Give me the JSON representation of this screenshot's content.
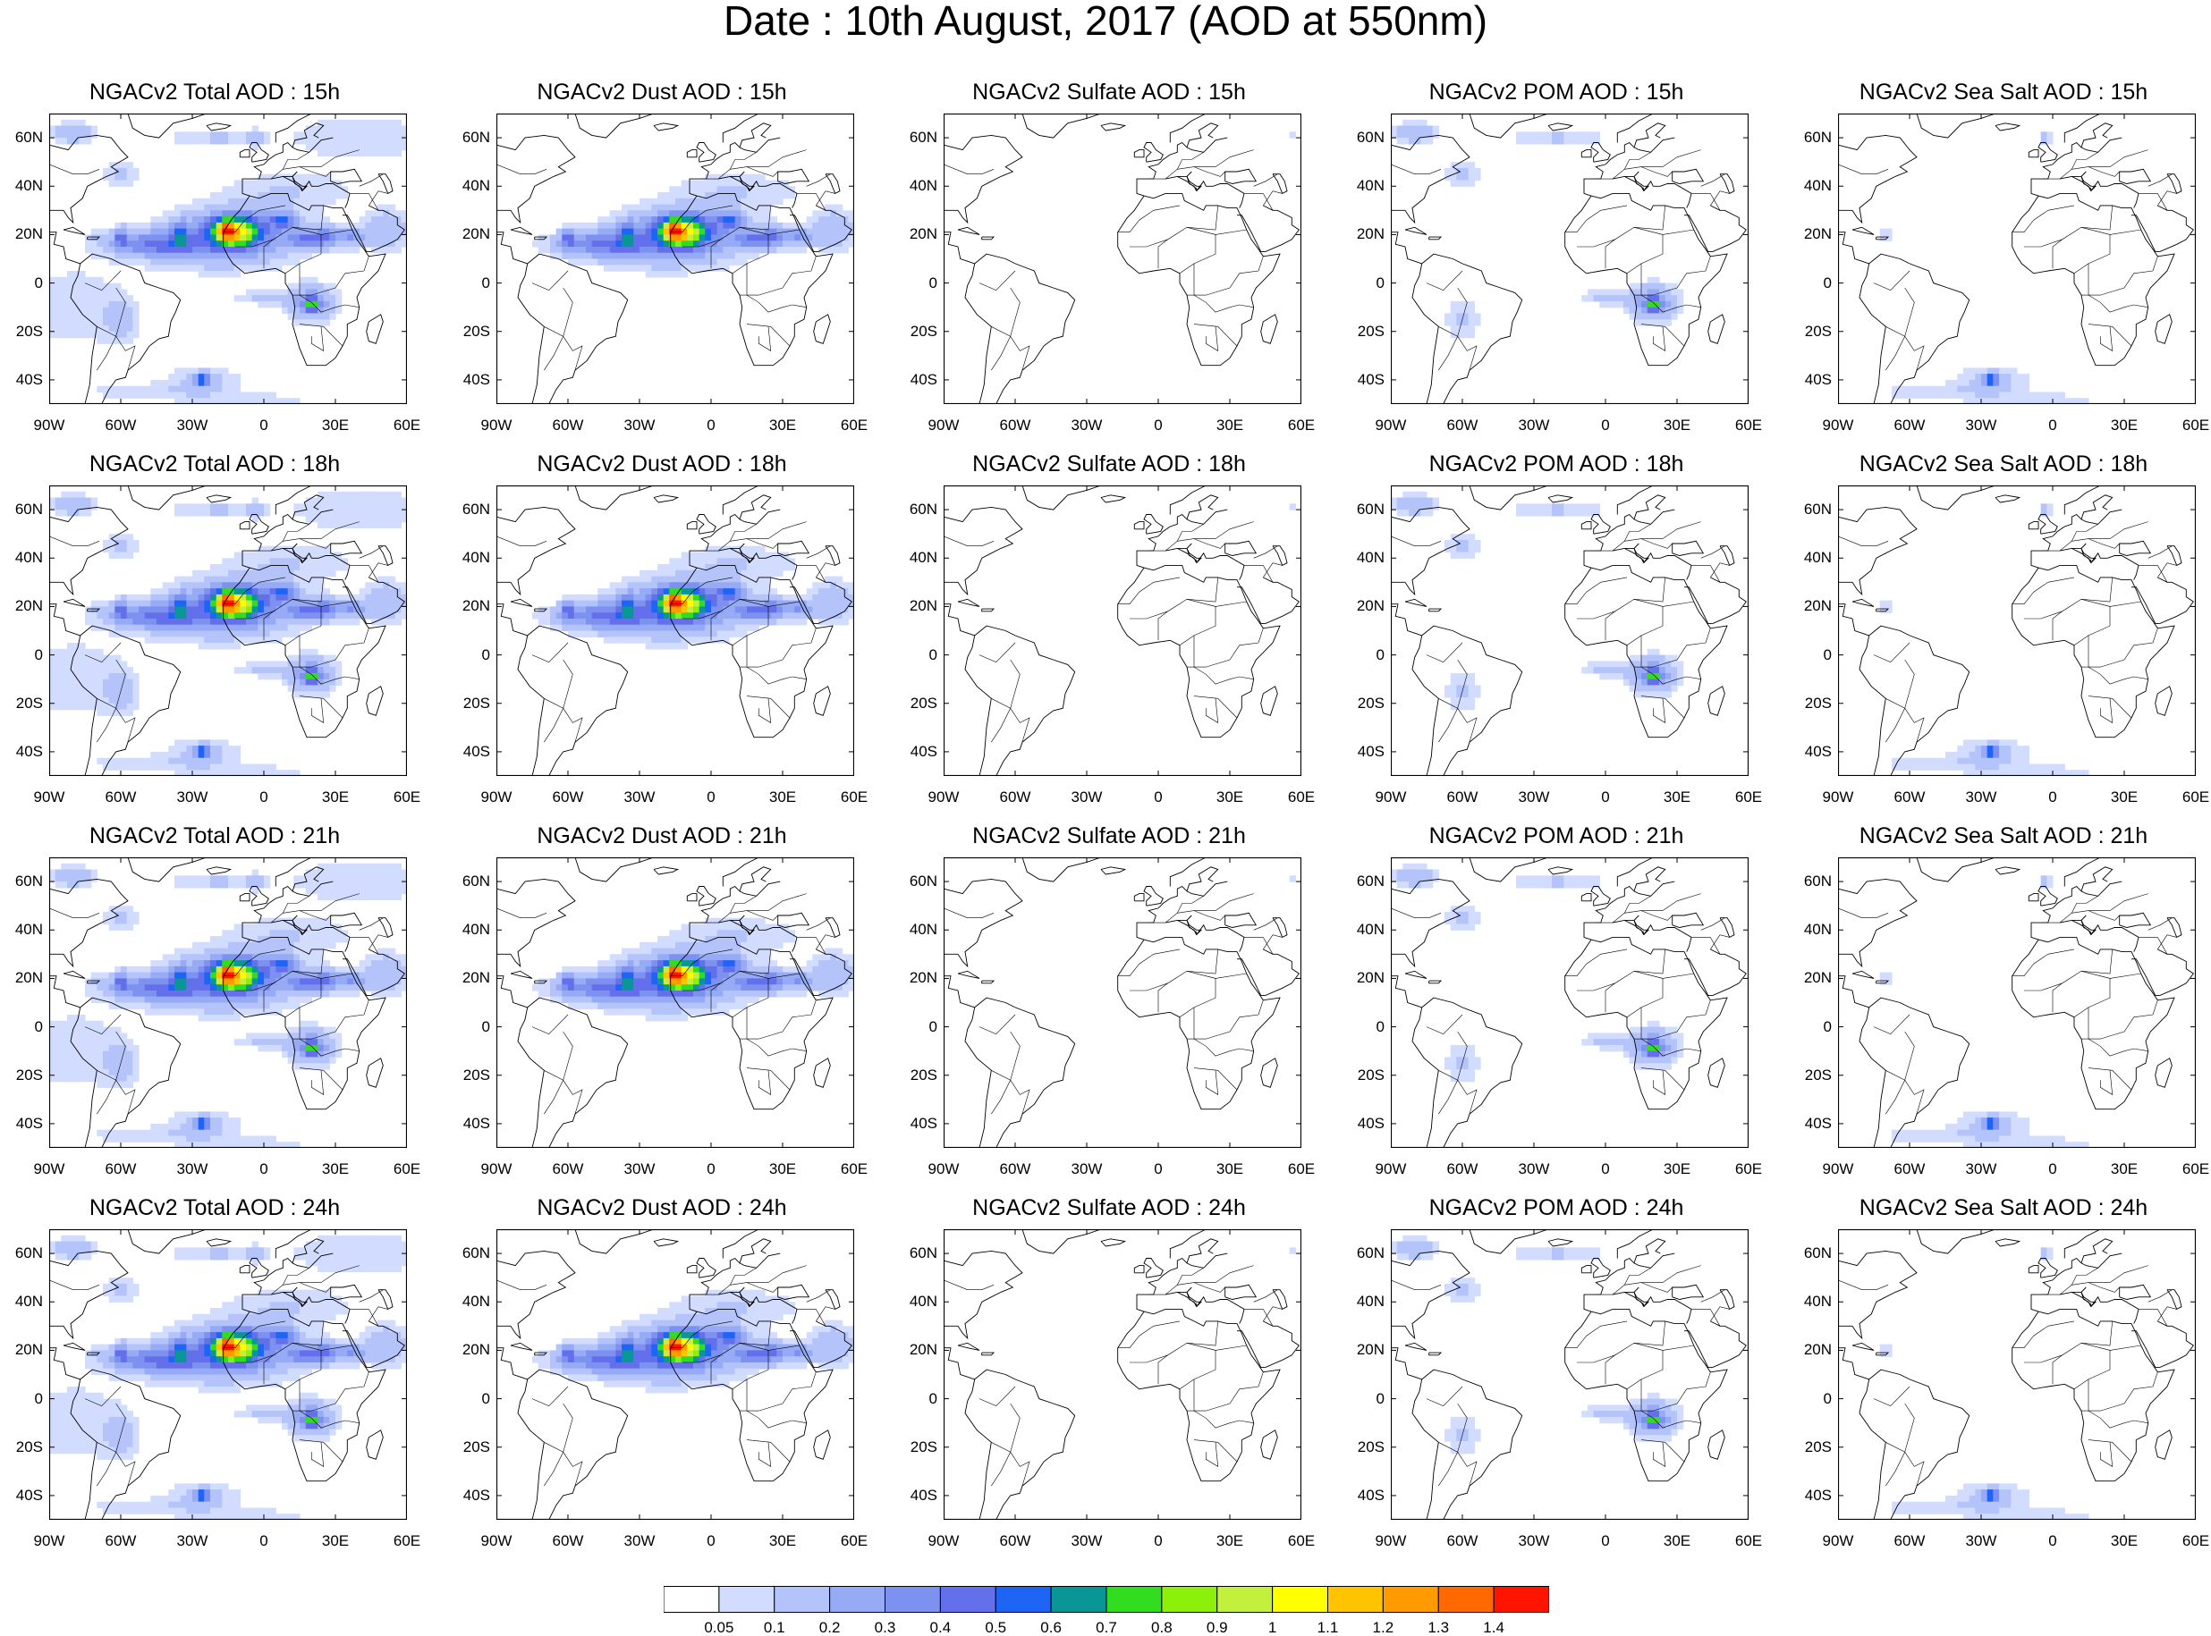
{
  "title": "Date : 10th August, 2017 (AOD at 550nm)",
  "lat_labels": [
    "60N",
    "40N",
    "20N",
    "0",
    "20S",
    "40S"
  ],
  "lat_values": [
    60,
    40,
    20,
    0,
    -20,
    -40
  ],
  "lon_labels": [
    "90W",
    "60W",
    "30W",
    "0",
    "30E",
    "60E"
  ],
  "lon_values": [
    -90,
    -60,
    -30,
    0,
    30,
    60
  ],
  "map_extent": {
    "lon": [
      -90,
      60
    ],
    "lat": [
      -50,
      70
    ]
  },
  "panels": [
    {
      "title": "NGACv2 Total AOD : 15h",
      "species": "total"
    },
    {
      "title": "NGACv2 Dust AOD : 15h",
      "species": "dust"
    },
    {
      "title": "NGACv2 Sulfate AOD : 15h",
      "species": "sulfate"
    },
    {
      "title": "NGACv2 POM AOD : 15h",
      "species": "pom"
    },
    {
      "title": "NGACv2 Sea Salt AOD : 15h",
      "species": "seasalt"
    },
    {
      "title": "NGACv2 Total AOD : 18h",
      "species": "total"
    },
    {
      "title": "NGACv2 Dust AOD : 18h",
      "species": "dust"
    },
    {
      "title": "NGACv2 Sulfate AOD : 18h",
      "species": "sulfate"
    },
    {
      "title": "NGACv2 POM AOD : 18h",
      "species": "pom"
    },
    {
      "title": "NGACv2 Sea Salt AOD : 18h",
      "species": "seasalt"
    },
    {
      "title": "NGACv2 Total AOD : 21h",
      "species": "total"
    },
    {
      "title": "NGACv2 Dust AOD : 21h",
      "species": "dust"
    },
    {
      "title": "NGACv2 Sulfate AOD : 21h",
      "species": "sulfate"
    },
    {
      "title": "NGACv2 POM AOD : 21h",
      "species": "pom"
    },
    {
      "title": "NGACv2 Sea Salt AOD : 21h",
      "species": "seasalt"
    },
    {
      "title": "NGACv2 Total AOD : 24h",
      "species": "total"
    },
    {
      "title": "NGACv2 Dust AOD : 24h",
      "species": "dust"
    },
    {
      "title": "NGACv2 Sulfate AOD : 24h",
      "species": "sulfate"
    },
    {
      "title": "NGACv2 POM AOD : 24h",
      "species": "pom"
    },
    {
      "title": "NGACv2 Sea Salt  AOD : 24h",
      "species": "seasalt"
    }
  ],
  "colorbar": {
    "labels": [
      "0.05",
      "0.1",
      "0.2",
      "0.3",
      "0.4",
      "0.5",
      "0.6",
      "0.7",
      "0.8",
      "0.9",
      "1",
      "1.1",
      "1.2",
      "1.3",
      "1.4"
    ],
    "colors": [
      "#ffffff",
      "#d2dcff",
      "#b4c3fa",
      "#96aaf5",
      "#7d91f0",
      "#6470eb",
      "#1e64f5",
      "#0a9696",
      "#32dc1e",
      "#8cf00a",
      "#c3f03c",
      "#ffff00",
      "#ffc300",
      "#ff9b00",
      "#ff6900",
      "#ff1400"
    ]
  },
  "palette": {
    "outline": "#000000",
    "background": "#ffffff"
  }
}
